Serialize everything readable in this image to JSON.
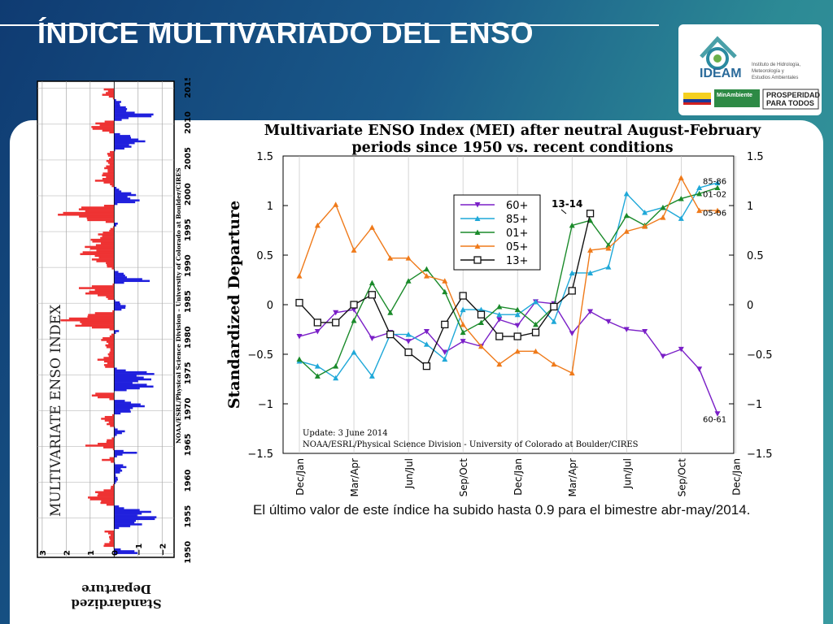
{
  "slide": {
    "title": "ÍNDICE MULTIVARIADO DEL ENSO",
    "caption": "El último valor de este índice ha subido hasta 0.9 para el bimestre abr-may/2014."
  },
  "logo": {
    "brand": "IDEAM",
    "institute_lines": [
      "Instituto de Hidrología,",
      "Meteorología y",
      "Estudios Ambientales"
    ],
    "ministry": "MinAmbiente",
    "slogan_line1": "PROSPERIDAD",
    "slogan_line2": "PARA TODOS"
  },
  "chart_data": [
    {
      "type": "bar",
      "title": "MULTIVARIATE ENSO INDEX",
      "ylabel": "Standardized Departure",
      "source": "NOAA/ESRL/Physical Science Division – University of Colorado at Boulder/CIRES",
      "year_ticks": [
        "1950",
        "1955",
        "1960",
        "1965",
        "1970",
        "1975",
        "1980",
        "1985",
        "1990",
        "1995",
        "2000",
        "2005",
        "2010",
        "2015"
      ],
      "value_ticks": [
        "3",
        "2",
        "1",
        "0",
        "−1",
        "−2"
      ],
      "vlim": [
        -2.5,
        3.2
      ],
      "colors": {
        "positive": "#ee3333",
        "negative": "#2020dd"
      },
      "years": [
        1950,
        1951,
        1952,
        1953,
        1954,
        1955,
        1956,
        1957,
        1958,
        1959,
        1960,
        1961,
        1962,
        1963,
        1964,
        1965,
        1966,
        1967,
        1968,
        1969,
        1970,
        1971,
        1972,
        1973,
        1974,
        1975,
        1976,
        1977,
        1978,
        1979,
        1980,
        1981,
        1982,
        1983,
        1984,
        1985,
        1986,
        1987,
        1988,
        1989,
        1990,
        1991,
        1992,
        1993,
        1994,
        1995,
        1996,
        1997,
        1998,
        1999,
        2000,
        2001,
        2002,
        2003,
        2004,
        2005,
        2006,
        2007,
        2008,
        2009,
        2010,
        2011,
        2012,
        2013,
        2014
      ],
      "values": [
        -1.3,
        0.5,
        0.2,
        0.4,
        -1.2,
        -2.0,
        -1.4,
        0.9,
        1.3,
        0.3,
        -0.2,
        -0.1,
        -0.7,
        0.6,
        -1.0,
        1.2,
        0.1,
        -0.5,
        0.4,
        0.6,
        -1.2,
        -1.4,
        1.8,
        -1.8,
        -1.4,
        -2.0,
        0.4,
        0.7,
        0.2,
        0.4,
        0.6,
        -0.3,
        2.4,
        2.2,
        -0.6,
        -0.4,
        1.0,
        1.8,
        -1.6,
        -0.4,
        0.3,
        1.0,
        1.6,
        1.1,
        1.0,
        0.4,
        -0.3,
        2.6,
        2.2,
        -1.1,
        -1.0,
        -0.1,
        0.8,
        0.5,
        0.4,
        0.3,
        0.3,
        -1.2,
        -1.4,
        0.9,
        1.2,
        -2.0,
        -0.6,
        -0.3,
        0.5
      ]
    },
    {
      "type": "line",
      "title": "Multivariate ENSO Index (MEI) after neutral August-February periods since 1950 vs. recent conditions",
      "ylabel": "Standardized Departure",
      "ylim": [
        -1.5,
        1.5
      ],
      "yticks": [
        "1.5",
        "1",
        "0.5",
        "0",
        "−0.5",
        "−1",
        "−1.5"
      ],
      "xticks": [
        "Dec/Jan",
        "Mar/Apr",
        "Jun/Jul",
        "Sep/Oct",
        "Dec/Jan",
        "Mar/Apr",
        "Jun/Jul",
        "Sep/Oct",
        "Dec/Jan"
      ],
      "update_note": "Update: 3 June 2014",
      "source": "NOAA/ESRL/Physical Science Division - University of Colorado at Boulder/CIRES",
      "end_labels": [
        "85-86",
        "01-02",
        "05-06",
        "60-61"
      ],
      "current_label": "13-14",
      "series": [
        {
          "name": "60+",
          "color": "#7a1fc7",
          "marker": "down-triangle",
          "values": [
            -0.32,
            -0.27,
            -0.08,
            -0.05,
            -0.34,
            -0.28,
            -0.37,
            -0.27,
            -0.48,
            -0.37,
            -0.42,
            -0.15,
            -0.21,
            0.03,
            0.01,
            -0.29,
            -0.07,
            -0.17,
            -0.25,
            -0.27,
            -0.52,
            -0.45,
            -0.65,
            -1.1
          ]
        },
        {
          "name": "85+",
          "color": "#1fa8d8",
          "marker": "up-triangle",
          "values": [
            -0.57,
            -0.62,
            -0.74,
            -0.48,
            -0.72,
            -0.3,
            -0.3,
            -0.4,
            -0.55,
            -0.05,
            -0.05,
            -0.1,
            -0.1,
            0.03,
            -0.17,
            0.32,
            0.32,
            0.38,
            1.12,
            0.93,
            0.98,
            0.87,
            1.18,
            1.23
          ]
        },
        {
          "name": "01+",
          "color": "#1a8a2a",
          "marker": "up-triangle",
          "values": [
            -0.55,
            -0.72,
            -0.62,
            -0.16,
            0.22,
            -0.08,
            0.24,
            0.36,
            0.13,
            -0.28,
            -0.18,
            -0.02,
            -0.05,
            -0.2,
            -0.02,
            0.8,
            0.85,
            0.6,
            0.9,
            0.8,
            0.98,
            1.07,
            1.12,
            1.18
          ]
        },
        {
          "name": "05+",
          "color": "#ef7a1a",
          "marker": "up-triangle",
          "values": [
            0.29,
            0.8,
            1.01,
            0.55,
            0.78,
            0.47,
            0.47,
            0.29,
            0.24,
            -0.2,
            -0.42,
            -0.6,
            -0.47,
            -0.47,
            -0.6,
            -0.69,
            0.55,
            0.57,
            0.74,
            0.79,
            0.88,
            1.28,
            0.95,
            0.95
          ]
        },
        {
          "name": "13+",
          "color": "#111111",
          "marker": "open-square",
          "values": [
            0.02,
            -0.18,
            -0.18,
            0.0,
            0.1,
            -0.3,
            -0.48,
            -0.62,
            -0.2,
            0.09,
            -0.1,
            -0.32,
            -0.32,
            -0.28,
            -0.02,
            0.14,
            0.92
          ]
        }
      ],
      "legend_position": "top-center"
    }
  ]
}
